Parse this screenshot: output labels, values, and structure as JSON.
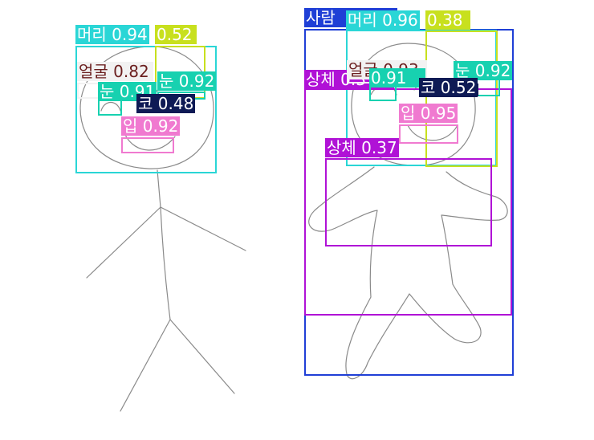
{
  "figures": [
    {
      "name": "left-figure",
      "detections": [
        {
          "label": "머리",
          "score": "0.94",
          "color": "#2ad6d6",
          "text": "#ffffff"
        },
        {
          "label": "",
          "score": "0.52",
          "color": "#c8e01e",
          "text": "#ffffff"
        },
        {
          "label": "얼굴",
          "score": "0.82",
          "color": "#f2f2f2",
          "text": "#6b1f1f"
        },
        {
          "label": "눈",
          "score": "0.91",
          "color": "#17d1b0",
          "text": "#ffffff"
        },
        {
          "label": "눈",
          "score": "0.92",
          "color": "#17d1b0",
          "text": "#ffffff"
        },
        {
          "label": "코",
          "score": "0.48",
          "color": "#0e1a55",
          "text": "#ffffff"
        },
        {
          "label": "입",
          "score": "0.92",
          "color": "#f07ad0",
          "text": "#ffffff"
        }
      ]
    },
    {
      "name": "right-figure",
      "detections": [
        {
          "label": "사람",
          "score": "",
          "color": "#1f3fd6",
          "text": "#ffffff"
        },
        {
          "label": "머리",
          "score": "0.96",
          "color": "#2ad6d6",
          "text": "#ffffff"
        },
        {
          "label": "",
          "score": "0.38",
          "color": "#c8e01e",
          "text": "#ffffff"
        },
        {
          "label": "상체",
          "score": "0.3",
          "color": "#b012d6",
          "text": "#ffffff"
        },
        {
          "label": "얼굴",
          "score": "0.93",
          "color": "#f2f2f2",
          "text": "#6b1f1f"
        },
        {
          "label": "",
          "score": "0.91",
          "color": "#17d1b0",
          "text": "#ffffff"
        },
        {
          "label": "눈",
          "score": "0.92",
          "color": "#17d1b0",
          "text": "#ffffff"
        },
        {
          "label": "코",
          "score": "0.52",
          "color": "#0e1a55",
          "text": "#ffffff"
        },
        {
          "label": "입",
          "score": "0.95",
          "color": "#f07ad0",
          "text": "#ffffff"
        },
        {
          "label": "상체",
          "score": "0.37",
          "color": "#b012d6",
          "text": "#ffffff"
        }
      ]
    }
  ]
}
